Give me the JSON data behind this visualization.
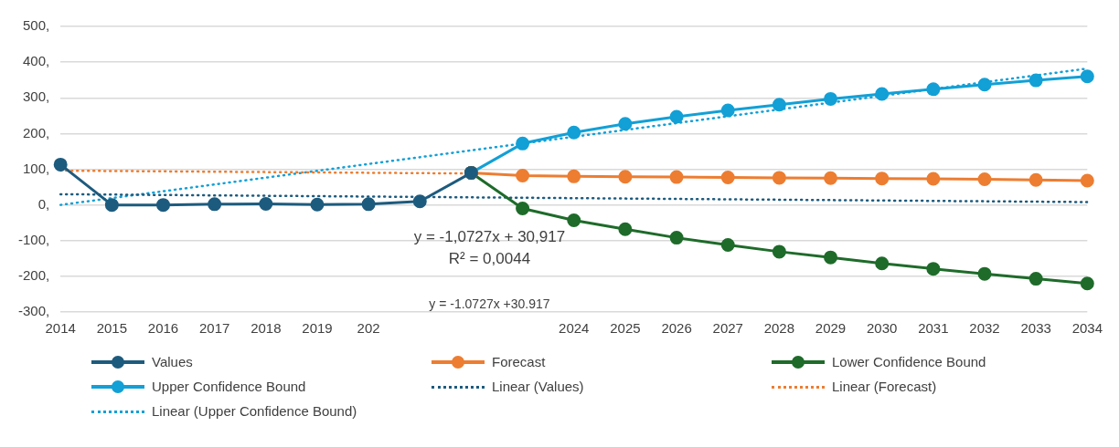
{
  "chart_data": {
    "type": "line",
    "categories": [
      "2014",
      "2015",
      "2016",
      "2017",
      "2018",
      "2019",
      "202",
      null,
      null,
      null,
      "2024",
      "2025",
      "2026",
      "2027",
      "2028",
      "2029",
      "2030",
      "2031",
      "2032",
      "2033",
      "2034"
    ],
    "series": [
      {
        "name": "Values",
        "color": "#1d5b7e",
        "marker": "circle",
        "line_style": "solid",
        "values": [
          113,
          0,
          0,
          2,
          3,
          1,
          2,
          10,
          90,
          null,
          null,
          null,
          null,
          null,
          null,
          null,
          null,
          null,
          null,
          null,
          null
        ]
      },
      {
        "name": "Forecast",
        "color": "#ed7d31",
        "marker": "circle",
        "line_style": "solid",
        "values": [
          null,
          null,
          null,
          null,
          null,
          null,
          null,
          null,
          90,
          82,
          80,
          79,
          78,
          77,
          76,
          75,
          74,
          73,
          72,
          70,
          68
        ]
      },
      {
        "name": "Lower Confidence Bound",
        "color": "#1e6b2a",
        "marker": "circle",
        "line_style": "solid",
        "values": [
          null,
          null,
          null,
          null,
          null,
          null,
          null,
          null,
          90,
          -10,
          -43,
          -68,
          -92,
          -112,
          -131,
          -147,
          -164,
          -179,
          -193,
          -207,
          -220
        ]
      },
      {
        "name": "Upper Confidence Bound",
        "color": "#12a0d6",
        "marker": "circle",
        "line_style": "solid",
        "values": [
          null,
          null,
          null,
          null,
          null,
          null,
          null,
          null,
          90,
          172,
          203,
          227,
          247,
          265,
          281,
          297,
          311,
          324,
          337,
          349,
          360
        ]
      },
      {
        "name": "Linear (Values)",
        "color": "#1d5b7e",
        "marker": "none",
        "line_style": "dotted",
        "values": [
          30,
          null,
          null,
          null,
          null,
          null,
          null,
          null,
          null,
          null,
          null,
          null,
          null,
          null,
          null,
          null,
          null,
          null,
          null,
          null,
          8
        ]
      },
      {
        "name": "Linear (Forecast)",
        "color": "#ed7d31",
        "marker": "none",
        "line_style": "dotted",
        "values": [
          96,
          null,
          null,
          null,
          null,
          null,
          null,
          null,
          88,
          null,
          null,
          null,
          null,
          null,
          null,
          null,
          null,
          null,
          null,
          null,
          null
        ]
      },
      {
        "name": "Linear (Upper Confidence Bound)",
        "color": "#12a0d6",
        "marker": "none",
        "line_style": "dotted",
        "values": [
          0,
          null,
          null,
          null,
          null,
          null,
          null,
          null,
          null,
          null,
          null,
          null,
          null,
          null,
          null,
          null,
          null,
          null,
          null,
          null,
          382
        ]
      }
    ],
    "ylim": [
      -300,
      500
    ],
    "yticks": [
      {
        "value": -300,
        "label": "-300,"
      },
      {
        "value": -200,
        "label": "-200,"
      },
      {
        "value": -100,
        "label": "-100,"
      },
      {
        "value": 0,
        "label": "0,"
      },
      {
        "value": 100,
        "label": "100,"
      },
      {
        "value": 200,
        "label": "200,"
      },
      {
        "value": 300,
        "label": "300,"
      },
      {
        "value": 400,
        "label": "400,"
      },
      {
        "value": 500,
        "label": "500,"
      }
    ],
    "grid": "y",
    "legend": "bottom",
    "annotations": [
      "y = -1,0727x + 30,917",
      "R² = 0,0044",
      "y = -1.0727x +30.917"
    ]
  }
}
